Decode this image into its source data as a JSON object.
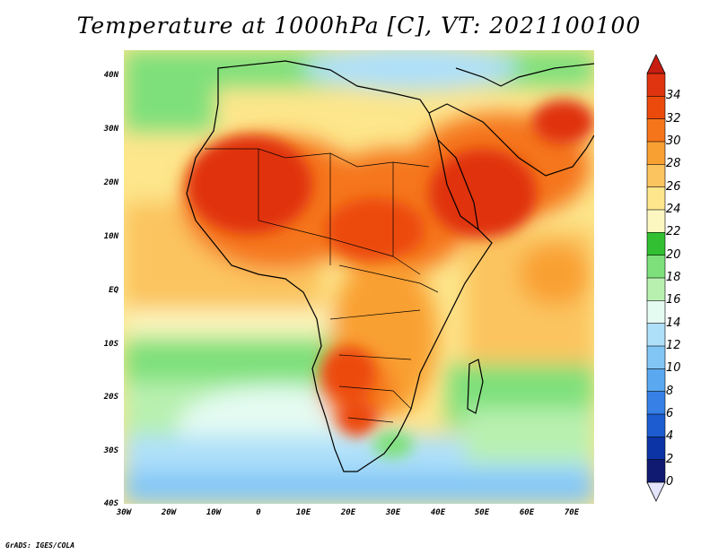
{
  "title": "Temperature at 1000hPa [C], VT: 2021100100",
  "footer": "GrADS: IGES/COLA",
  "map": {
    "region": "Africa",
    "lon_range": [
      -30,
      75
    ],
    "lat_range": [
      -40,
      45
    ],
    "lat_ticks": [
      "40N",
      "30N",
      "20N",
      "10N",
      "EQ",
      "10S",
      "20S",
      "30S",
      "40S"
    ],
    "lon_ticks": [
      "30W",
      "20W",
      "10W",
      "0",
      "10E",
      "20E",
      "30E",
      "40E",
      "50E",
      "60E",
      "70E"
    ]
  },
  "colorbar": {
    "levels": [
      "34",
      "32",
      "30",
      "28",
      "26",
      "24",
      "22",
      "20",
      "18",
      "16",
      "14",
      "12",
      "10",
      "8",
      "6",
      "4",
      "2",
      "0"
    ],
    "colors": [
      "#e0330f",
      "#ec4a0d",
      "#f5761a",
      "#f9a033",
      "#fbc45f",
      "#fde68c",
      "#fcf7c0",
      "#32c032",
      "#7ee07a",
      "#b8f0b0",
      "#e4fbf2",
      "#aee0fa",
      "#82c6f6",
      "#5aa8f0",
      "#3680e6",
      "#1c5cd0",
      "#0c34a6",
      "#101a70"
    ],
    "top_color": "#c81e12",
    "bottom_color": "#e4e4fc"
  }
}
